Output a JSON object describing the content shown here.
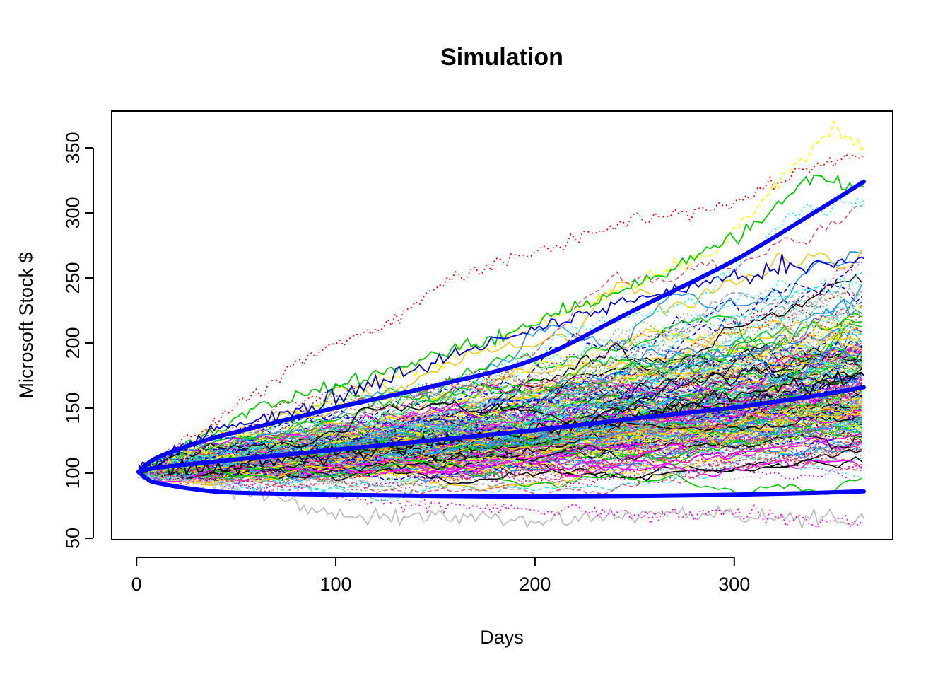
{
  "chart_data": {
    "type": "line",
    "title": "Simulation",
    "xlabel": "Days",
    "ylabel": "Microsoft Stock $",
    "xlim": [
      0,
      365
    ],
    "ylim": [
      50,
      365
    ],
    "x_ticks": [
      0,
      100,
      200,
      300
    ],
    "y_ticks": [
      50,
      100,
      150,
      200,
      250,
      300,
      350
    ],
    "grid": false,
    "legend": "none",
    "simulated_paths": {
      "description_visible": false,
      "start_value": 101,
      "start_day": 1,
      "end_day": 365,
      "colors": [
        "#000000",
        "#DF536B",
        "#61D04F",
        "#2297E6",
        "#28E2E5",
        "#CD0BBC",
        "#F5C710",
        "#9E9E9E",
        "#FF0000",
        "#00CD00",
        "#0000FF",
        "#00FFFF",
        "#FF00FF",
        "#FFFF00",
        "#BEBEBE"
      ],
      "highlight_paths": [
        {
          "color": "#FF0000",
          "dash": "dotted",
          "points": [
            [
              1,
              101
            ],
            [
              40,
              140
            ],
            [
              80,
              185
            ],
            [
              120,
              210
            ],
            [
              160,
              250
            ],
            [
              200,
              270
            ],
            [
              240,
              290
            ],
            [
              270,
              300
            ],
            [
              300,
              305
            ],
            [
              330,
              330
            ],
            [
              365,
              345
            ]
          ]
        },
        {
          "color": "#FFFF00",
          "dash": "dashed",
          "points": [
            [
              1,
              101
            ],
            [
              60,
              130
            ],
            [
              120,
              170
            ],
            [
              180,
              200
            ],
            [
              240,
              240
            ],
            [
              290,
              270
            ],
            [
              320,
              320
            ],
            [
              350,
              365
            ],
            [
              365,
              350
            ]
          ]
        },
        {
          "color": "#00CD00",
          "dash": "solid",
          "points": [
            [
              1,
              101
            ],
            [
              60,
              150
            ],
            [
              120,
              175
            ],
            [
              200,
              215
            ],
            [
              260,
              250
            ],
            [
              310,
              290
            ],
            [
              340,
              330
            ],
            [
              365,
              320
            ]
          ]
        },
        {
          "color": "#BEBEBE",
          "dash": "solid",
          "points": [
            [
              1,
              101
            ],
            [
              60,
              85
            ],
            [
              110,
              65
            ],
            [
              160,
              68
            ],
            [
              200,
              64
            ],
            [
              250,
              70
            ],
            [
              300,
              68
            ],
            [
              340,
              66
            ],
            [
              365,
              65
            ]
          ]
        },
        {
          "color": "#FF00FF",
          "dash": "dotted",
          "points": [
            [
              1,
              101
            ],
            [
              80,
              85
            ],
            [
              140,
              75
            ],
            [
              200,
              72
            ],
            [
              260,
              68
            ],
            [
              310,
              70
            ],
            [
              340,
              62
            ],
            [
              365,
              62
            ]
          ]
        },
        {
          "color": "#000000",
          "dash": "solid",
          "points": [
            [
              1,
              101
            ],
            [
              80,
              110
            ],
            [
              160,
              125
            ],
            [
              240,
              140
            ],
            [
              300,
              160
            ],
            [
              365,
              175
            ]
          ]
        },
        {
          "color": "#0000FF",
          "dash": "solid",
          "points": [
            [
              1,
              101
            ],
            [
              40,
              135
            ],
            [
              90,
              150
            ],
            [
              130,
              175
            ],
            [
              180,
              200
            ],
            [
              240,
              230
            ],
            [
              300,
              250
            ],
            [
              365,
              265
            ]
          ]
        },
        {
          "color": "#00FFFF",
          "dash": "dotted",
          "points": [
            [
              1,
              101
            ],
            [
              90,
              130
            ],
            [
              160,
              160
            ],
            [
              220,
              210
            ],
            [
              280,
              230
            ],
            [
              330,
              300
            ],
            [
              365,
              310
            ]
          ]
        }
      ]
    },
    "series": [
      {
        "name": "",
        "color": "#0000FF",
        "points": [
          [
            1,
            101
          ],
          [
            10,
            111.7
          ],
          [
            30,
            123.1
          ],
          [
            50,
            131.6
          ],
          [
            100,
            150.2
          ],
          [
            150,
            167.3
          ],
          [
            200,
            187.6
          ],
          [
            250,
            225.5
          ],
          [
            300,
            263.5
          ],
          [
            340,
            300.1
          ],
          [
            365,
            324
          ]
        ]
      },
      {
        "name": "",
        "color": "#0000FF",
        "points": [
          [
            1,
            101
          ],
          [
            10,
            104.1
          ],
          [
            50,
            110.5
          ],
          [
            100,
            118.0
          ],
          [
            150,
            125.5
          ],
          [
            200,
            133.0
          ],
          [
            250,
            142.0
          ],
          [
            300,
            150.5
          ],
          [
            340,
            159.3
          ],
          [
            365,
            166
          ]
        ]
      },
      {
        "name": "",
        "color": "#0000FF",
        "points": [
          [
            1,
            101
          ],
          [
            5,
            96
          ],
          [
            10,
            92.6
          ],
          [
            30,
            87.5
          ],
          [
            50,
            85
          ],
          [
            100,
            83.5
          ],
          [
            150,
            82.5
          ],
          [
            200,
            82
          ],
          [
            250,
            82.5
          ],
          [
            300,
            83.5
          ],
          [
            340,
            84.8
          ],
          [
            365,
            86
          ]
        ]
      }
    ]
  }
}
